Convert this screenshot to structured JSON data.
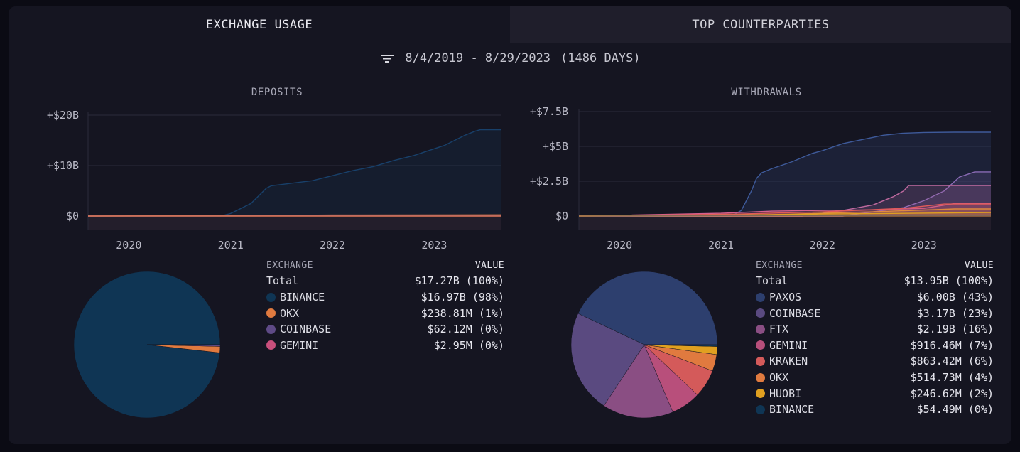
{
  "tabs": [
    {
      "label": "EXCHANGE USAGE",
      "active": true
    },
    {
      "label": "TOP COUNTERPARTIES",
      "active": false
    }
  ],
  "date_range": {
    "text": "8/4/2019 - 8/29/2023",
    "days": "(1486 DAYS)"
  },
  "table_headers": {
    "exchange": "EXCHANGE",
    "value": "VALUE"
  },
  "chart_data": [
    {
      "type": "area",
      "title": "DEPOSITS",
      "x_ticks": [
        "2020",
        "2021",
        "2022",
        "2023"
      ],
      "x_range": [
        2019.6,
        2023.66
      ],
      "y_ticks": [
        "+$20B",
        "+$10B",
        "$0"
      ],
      "y_tick_values": [
        20,
        10,
        0
      ],
      "ylim": [
        0,
        20
      ],
      "y_unit": "B",
      "series": [
        {
          "name": "BINANCE",
          "color": "#18406a",
          "x": [
            2019.6,
            2020.9,
            2021.0,
            2021.1,
            2021.2,
            2021.3,
            2021.35,
            2021.4,
            2021.6,
            2021.8,
            2021.9,
            2022.0,
            2022.2,
            2022.4,
            2022.6,
            2022.8,
            2022.95,
            2023.1,
            2023.2,
            2023.3,
            2023.4,
            2023.45,
            2023.66
          ],
          "y": [
            0,
            0,
            0.5,
            1.5,
            2.5,
            4.5,
            5.5,
            6,
            6.5,
            7,
            7.5,
            8,
            9,
            9.8,
            11,
            12,
            13,
            14,
            15,
            16,
            16.8,
            17.1,
            17.1
          ]
        },
        {
          "name": "OKX",
          "color": "#e07a3f",
          "x": [
            2019.6,
            2021.0,
            2022.0,
            2023.66
          ],
          "y": [
            0,
            0.1,
            0.2,
            0.24
          ]
        },
        {
          "name": "COINBASE",
          "color": "#6b4f8f",
          "x": [
            2019.6,
            2021.5,
            2023.66
          ],
          "y": [
            0,
            0.03,
            0.06
          ]
        },
        {
          "name": "GEMINI",
          "color": "#c94f7c",
          "x": [
            2019.6,
            2023.66
          ],
          "y": [
            0,
            0.003
          ]
        }
      ],
      "pie": [
        {
          "name": "BINANCE",
          "value": 16.97,
          "color": "#0f3554"
        },
        {
          "name": "OKX",
          "value": 0.23881,
          "color": "#e07a3f"
        },
        {
          "name": "COINBASE",
          "value": 0.06212,
          "color": "#5e4a86"
        },
        {
          "name": "GEMINI",
          "value": 0.00295,
          "color": "#c94f7c"
        }
      ],
      "table": {
        "total_label": "Total",
        "total_value": "$17.27B (100%)",
        "rows": [
          {
            "label": "BINANCE",
            "value": "$16.97B (98%)",
            "color": "#0f3554"
          },
          {
            "label": "OKX",
            "value": "$238.81M (1%)",
            "color": "#e07a3f"
          },
          {
            "label": "COINBASE",
            "value": "$62.12M (0%)",
            "color": "#5e4a86"
          },
          {
            "label": "GEMINI",
            "value": "$2.95M (0%)",
            "color": "#c94f7c"
          }
        ]
      }
    },
    {
      "type": "area",
      "title": "WITHDRAWALS",
      "x_ticks": [
        "2020",
        "2021",
        "2022",
        "2023"
      ],
      "x_range": [
        2019.6,
        2023.66
      ],
      "y_ticks": [
        "+$7.5B",
        "+$5B",
        "+$2.5B",
        "$0"
      ],
      "y_tick_values": [
        7.5,
        5,
        2.5,
        0
      ],
      "ylim": [
        0,
        7.5
      ],
      "y_unit": "B",
      "series": [
        {
          "name": "PAXOS",
          "color": "#3e5a9a",
          "x": [
            2019.6,
            2021.1,
            2021.2,
            2021.3,
            2021.35,
            2021.4,
            2021.5,
            2021.7,
            2021.9,
            2022.0,
            2022.2,
            2022.4,
            2022.6,
            2022.8,
            2023.0,
            2023.3,
            2023.66
          ],
          "y": [
            0,
            0,
            0.4,
            1.8,
            2.7,
            3.1,
            3.4,
            3.9,
            4.5,
            4.7,
            5.2,
            5.5,
            5.8,
            5.95,
            6.0,
            6.02,
            6.02
          ]
        },
        {
          "name": "COINBASE",
          "color": "#8a6bb5",
          "x": [
            2019.6,
            2022.2,
            2022.5,
            2022.8,
            2023.0,
            2023.2,
            2023.35,
            2023.5,
            2023.66
          ],
          "y": [
            0,
            0,
            0.3,
            0.6,
            1.1,
            1.8,
            2.8,
            3.17,
            3.17
          ]
        },
        {
          "name": "FTX",
          "color": "#c06aa0",
          "x": [
            2019.6,
            2021.8,
            2022.2,
            2022.5,
            2022.7,
            2022.8,
            2022.85,
            2023.66
          ],
          "y": [
            0,
            0,
            0.4,
            0.8,
            1.4,
            1.8,
            2.19,
            2.19
          ]
        },
        {
          "name": "GEMINI",
          "color": "#d4608e",
          "x": [
            2019.6,
            2021.0,
            2021.5,
            2022.5,
            2023.0,
            2023.3,
            2023.66
          ],
          "y": [
            0,
            0.2,
            0.35,
            0.45,
            0.55,
            0.9,
            0.92
          ]
        },
        {
          "name": "KRAKEN",
          "color": "#e05a5a",
          "x": [
            2019.6,
            2021.2,
            2022.0,
            2022.8,
            2023.2,
            2023.66
          ],
          "y": [
            0,
            0.15,
            0.3,
            0.55,
            0.86,
            0.86
          ]
        },
        {
          "name": "OKX",
          "color": "#e08a3f",
          "x": [
            2019.6,
            2021.5,
            2022.5,
            2023.3,
            2023.66
          ],
          "y": [
            0,
            0.1,
            0.3,
            0.51,
            0.51
          ]
        },
        {
          "name": "HUOBI",
          "color": "#e0a020",
          "x": [
            2019.6,
            2021.0,
            2022.0,
            2023.66
          ],
          "y": [
            0,
            0.05,
            0.15,
            0.25
          ]
        },
        {
          "name": "BINANCE",
          "color": "#18406a",
          "x": [
            2019.6,
            2023.66
          ],
          "y": [
            0,
            0.05
          ]
        }
      ],
      "pie": [
        {
          "name": "PAXOS",
          "value": 6.0,
          "color": "#2d3f6e"
        },
        {
          "name": "COINBASE",
          "value": 3.17,
          "color": "#5a4a80"
        },
        {
          "name": "FTX",
          "value": 2.19,
          "color": "#8a4e83"
        },
        {
          "name": "GEMINI",
          "value": 0.91646,
          "color": "#b84f7b"
        },
        {
          "name": "KRAKEN",
          "value": 0.86342,
          "color": "#d45a5a"
        },
        {
          "name": "OKX",
          "value": 0.51473,
          "color": "#e07a3f"
        },
        {
          "name": "HUOBI",
          "value": 0.24662,
          "color": "#e0a020"
        },
        {
          "name": "BINANCE",
          "value": 0.05449,
          "color": "#0f3554"
        }
      ],
      "table": {
        "total_label": "Total",
        "total_value": "$13.95B (100%)",
        "rows": [
          {
            "label": "PAXOS",
            "value": "$6.00B (43%)",
            "color": "#2d3f6e"
          },
          {
            "label": "COINBASE",
            "value": "$3.17B (23%)",
            "color": "#5a4a80"
          },
          {
            "label": "FTX",
            "value": "$2.19B (16%)",
            "color": "#8a4e83"
          },
          {
            "label": "GEMINI",
            "value": "$916.46M (7%)",
            "color": "#b84f7b"
          },
          {
            "label": "KRAKEN",
            "value": "$863.42M (6%)",
            "color": "#d45a5a"
          },
          {
            "label": "OKX",
            "value": "$514.73M (4%)",
            "color": "#e07a3f"
          },
          {
            "label": "HUOBI",
            "value": "$246.62M (2%)",
            "color": "#e0a020"
          },
          {
            "label": "BINANCE",
            "value": "$54.49M (0%)",
            "color": "#0f3554"
          }
        ]
      }
    }
  ]
}
